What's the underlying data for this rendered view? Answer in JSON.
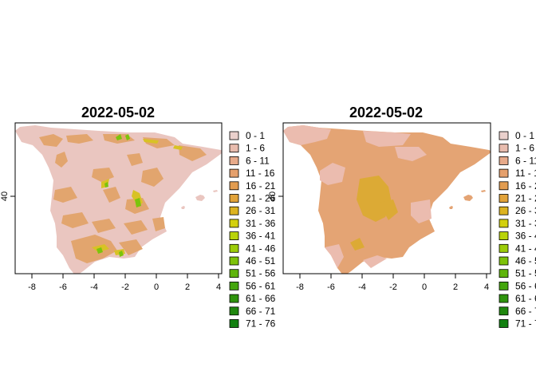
{
  "panels": [
    {
      "title": "2022-05-02",
      "x_ticks": [
        "-8",
        "-6",
        "-4",
        "-2",
        "0",
        "2",
        "4"
      ],
      "y_ticks": [
        "40"
      ]
    },
    {
      "title": "2022-05-02",
      "x_ticks": [
        "-8",
        "-6",
        "-4",
        "-2",
        "0",
        "2",
        "4"
      ],
      "y_ticks": [
        "40"
      ]
    }
  ],
  "legend": [
    {
      "label": "0 - 1",
      "color": "#ead0cc"
    },
    {
      "label": "1 - 6",
      "color": "#e8bcae"
    },
    {
      "label": "6 - 11",
      "color": "#e7aa8a"
    },
    {
      "label": "11 - 16",
      "color": "#e5a06c"
    },
    {
      "label": "16 - 21",
      "color": "#e29c50"
    },
    {
      "label": "21 - 26",
      "color": "#e2a33a"
    },
    {
      "label": "26 - 31",
      "color": "#dcb321"
    },
    {
      "label": "31 - 36",
      "color": "#d3d00e"
    },
    {
      "label": "36 - 41",
      "color": "#b9d30a"
    },
    {
      "label": "41 - 46",
      "color": "#9ccc09"
    },
    {
      "label": "46 - 51",
      "color": "#7dc20a"
    },
    {
      "label": "51 - 56",
      "color": "#5fb50b"
    },
    {
      "label": "56 - 61",
      "color": "#43a50c"
    },
    {
      "label": "61 - 66",
      "color": "#2e930d"
    },
    {
      "label": "66 - 71",
      "color": "#1f870e"
    },
    {
      "label": "71 - 76",
      "color": "#128010"
    }
  ],
  "map_colors": {
    "panel1_base": "#eac6c0",
    "panel1_patch": "#e2a56e",
    "panel1_yellow": "#d8c225",
    "panel1_green": "#7cc40c",
    "panel2_base": "#e4a474",
    "panel2_light": "#ebbcaf",
    "panel2_core": "#dcaa35"
  }
}
